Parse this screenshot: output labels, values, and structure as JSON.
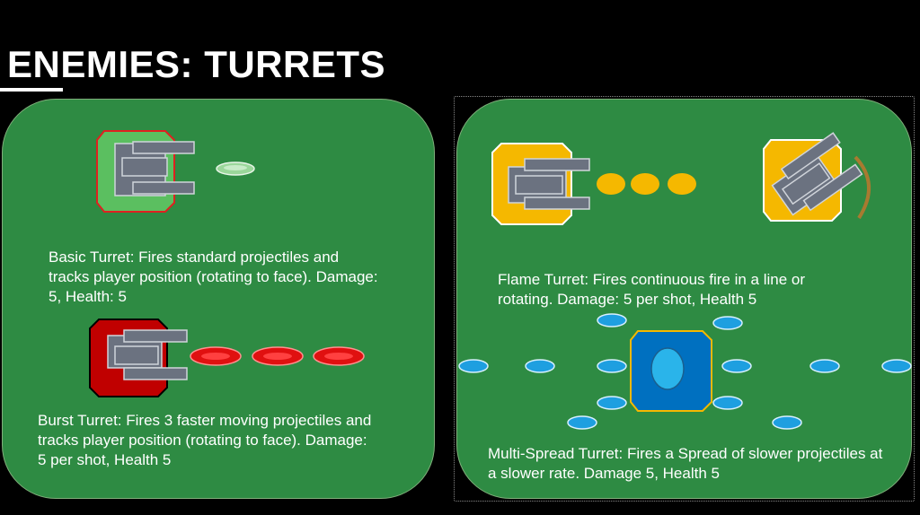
{
  "title": "ENEMIES: TURRETS",
  "turrets": [
    {
      "name": "basic",
      "description": "Basic Turret: Fires standard projectiles and tracks player position (rotating to face). Damage: 5, Health: 5",
      "color": "#5bbf60"
    },
    {
      "name": "burst",
      "description": "Burst Turret: Fires 3 faster moving projectiles and tracks player position (rotating to face). Damage: 5 per shot, Health 5",
      "color": "#c00000"
    },
    {
      "name": "flame",
      "description": "Flame Turret: Fires continuous fire in a line or rotating. Damage: 5 per shot, Health 5",
      "color": "#f5b800"
    },
    {
      "name": "multi-spread",
      "description": "Multi-Spread Turret: Fires a Spread of slower projectiles at a slower rate. Damage 5, Health 5",
      "color": "#0070c0"
    }
  ],
  "colors": {
    "background": "#000000",
    "panel": "#2e8b43",
    "barrel": "#6b7280",
    "projectile_blue": "#1e9fe0"
  }
}
